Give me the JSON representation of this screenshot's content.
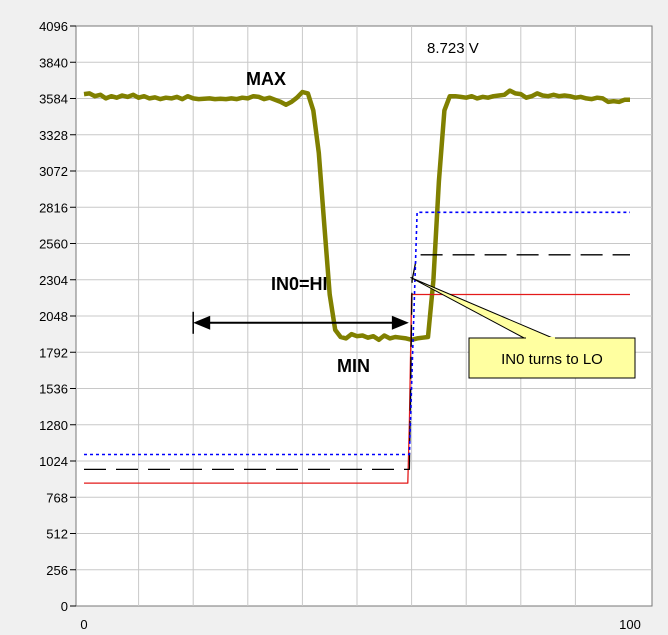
{
  "chart_data": {
    "type": "line",
    "title": "",
    "xlabel": "",
    "ylabel": "",
    "xlim": [
      0,
      100
    ],
    "ylim": [
      0,
      4096
    ],
    "x_tick_labels": [
      "0",
      "100"
    ],
    "y_ticks": [
      0,
      256,
      512,
      768,
      1024,
      1280,
      1536,
      1792,
      2048,
      2304,
      2560,
      2816,
      3072,
      3328,
      3584,
      3840,
      4096
    ],
    "grid": true,
    "readout": "8.723  V",
    "colors": {
      "background": "#f0f0f0",
      "plot_background": "#ffffff",
      "grid": "#c8c8c8",
      "signal": "#808000",
      "threshold_red": "#e31a1a",
      "threshold_black": "#000000",
      "threshold_blue": "#0000ff",
      "callout_fill": "#ffffa0"
    },
    "series": [
      {
        "values": [
          [
            0,
            3615
          ],
          [
            1,
            3620
          ],
          [
            2,
            3600
          ],
          [
            3,
            3610
          ],
          [
            4,
            3585
          ],
          [
            5,
            3600
          ],
          [
            6,
            3590
          ],
          [
            7,
            3605
          ],
          [
            8,
            3595
          ],
          [
            9,
            3610
          ],
          [
            10,
            3590
          ],
          [
            11,
            3600
          ],
          [
            12,
            3585
          ],
          [
            13,
            3592
          ],
          [
            14,
            3580
          ],
          [
            15,
            3590
          ],
          [
            16,
            3585
          ],
          [
            17,
            3595
          ],
          [
            18,
            3580
          ],
          [
            19,
            3600
          ],
          [
            20,
            3585
          ],
          [
            21,
            3580
          ],
          [
            22,
            3582
          ],
          [
            23,
            3585
          ],
          [
            24,
            3580
          ],
          [
            25,
            3582
          ],
          [
            26,
            3580
          ],
          [
            27,
            3585
          ],
          [
            28,
            3580
          ],
          [
            29,
            3590
          ],
          [
            30,
            3585
          ],
          [
            31,
            3600
          ],
          [
            32,
            3595
          ],
          [
            33,
            3580
          ],
          [
            34,
            3590
          ],
          [
            35,
            3575
          ],
          [
            36,
            3560
          ],
          [
            37,
            3540
          ],
          [
            38,
            3560
          ],
          [
            39,
            3590
          ],
          [
            40,
            3630
          ],
          [
            41,
            3620
          ],
          [
            42,
            3500
          ],
          [
            43,
            3200
          ],
          [
            44,
            2700
          ],
          [
            45,
            2200
          ],
          [
            46,
            1950
          ],
          [
            47,
            1900
          ],
          [
            48,
            1890
          ],
          [
            49,
            1920
          ],
          [
            50,
            1905
          ],
          [
            51,
            1910
          ],
          [
            52,
            1895
          ],
          [
            53,
            1905
          ],
          [
            54,
            1880
          ],
          [
            55,
            1910
          ],
          [
            56,
            1890
          ],
          [
            57,
            1900
          ],
          [
            58,
            1895
          ],
          [
            59,
            1890
          ],
          [
            60,
            1880
          ],
          [
            61,
            1890
          ],
          [
            62,
            1895
          ],
          [
            63,
            1900
          ],
          [
            64,
            2300
          ],
          [
            65,
            3000
          ],
          [
            66,
            3500
          ],
          [
            67,
            3600
          ],
          [
            68,
            3600
          ],
          [
            69,
            3595
          ],
          [
            70,
            3590
          ],
          [
            71,
            3600
          ],
          [
            72,
            3585
          ],
          [
            73,
            3595
          ],
          [
            74,
            3590
          ],
          [
            75,
            3600
          ],
          [
            76,
            3605
          ],
          [
            77,
            3610
          ],
          [
            78,
            3640
          ],
          [
            79,
            3620
          ],
          [
            80,
            3615
          ],
          [
            81,
            3590
          ],
          [
            82,
            3600
          ],
          [
            83,
            3620
          ],
          [
            84,
            3605
          ],
          [
            85,
            3600
          ],
          [
            86,
            3610
          ],
          [
            87,
            3600
          ],
          [
            88,
            3605
          ],
          [
            89,
            3600
          ],
          [
            90,
            3590
          ],
          [
            91,
            3595
          ],
          [
            92,
            3585
          ],
          [
            93,
            3580
          ],
          [
            94,
            3590
          ],
          [
            95,
            3585
          ],
          [
            96,
            3560
          ],
          [
            97,
            3565
          ],
          [
            98,
            3560
          ],
          [
            99,
            3575
          ],
          [
            100,
            3575
          ]
        ]
      },
      {
        "values": [
          [
            0,
            868
          ],
          [
            59.3,
            868
          ],
          [
            59.6,
            1300
          ],
          [
            60,
            2200
          ],
          [
            61,
            2200
          ],
          [
            100,
            2200
          ]
        ]
      },
      {
        "values": [
          [
            0,
            965
          ],
          [
            59.6,
            965
          ],
          [
            60.1,
            2300
          ],
          [
            61,
            2480
          ],
          [
            100,
            2480
          ]
        ]
      },
      {
        "values": [
          [
            0,
            1070
          ],
          [
            59.6,
            1070
          ],
          [
            61,
            2780
          ],
          [
            100,
            2780
          ]
        ]
      }
    ],
    "annotations": {
      "max_label": "MAX",
      "min_label": "MIN",
      "span_label": "IN0=HI",
      "span_from_x": 20,
      "span_to_x": 59.5,
      "span_y": 2000,
      "callout_text": "IN0 turns to LO",
      "callout_target_x": 59.8,
      "callout_target_y": 2320
    }
  }
}
